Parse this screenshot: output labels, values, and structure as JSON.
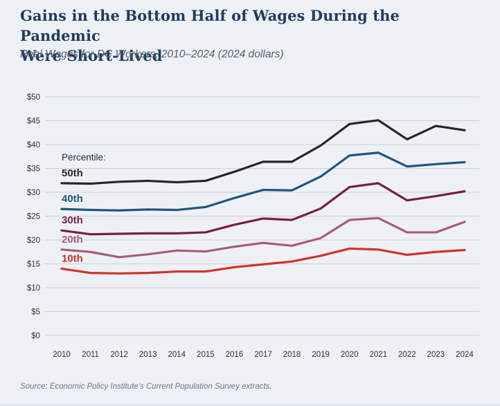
{
  "header": {
    "title_line1": "Gains in the Bottom Half of Wages During the Pandemic",
    "title_line2": "Were Short-Lived",
    "subtitle": "Real Wages for DC Workers, 2010–2024 (2024 dollars)"
  },
  "footer": {
    "source": "Source: Economic Policy Institute’s Current Population Survey extracts."
  },
  "colors": {
    "background": "#edf1f6",
    "title_text": "#1e3c5f",
    "subtitle_text": "#535e68",
    "axis_text": "#2d3238",
    "gridline": "#c9cfd7",
    "legend_title_text": "#22293a",
    "source_text": "#6e7881",
    "series_50th": "#25252b",
    "series_40th": "#1d567b",
    "series_30th": "#7b1d45",
    "series_20th": "#a85b76",
    "series_10th": "#d0312a"
  },
  "chart_data": {
    "type": "line",
    "title": "Gains in the Bottom Half of Wages During the Pandemic Were Short-Lived",
    "subtitle": "Real Wages for DC Workers, 2010–2024 (2024 dollars)",
    "legend_title": "Percentile:",
    "legend_position": "inside-left, label above each line's 2010 start",
    "grid": true,
    "xlabel": "",
    "ylabel": "",
    "ylim": [
      0,
      50
    ],
    "ytick_step": 5,
    "ytick_prefix": "$",
    "x": [
      2010,
      2011,
      2012,
      2013,
      2014,
      2015,
      2016,
      2017,
      2018,
      2019,
      2020,
      2021,
      2022,
      2023,
      2024
    ],
    "series": [
      {
        "name": "50th",
        "color": "#25252b",
        "values": [
          31.9,
          31.8,
          32.2,
          32.4,
          32.1,
          32.4,
          34.3,
          36.4,
          36.4,
          39.8,
          44.3,
          45.1,
          41.1,
          43.9,
          43.0
        ]
      },
      {
        "name": "40th",
        "color": "#1d567b",
        "values": [
          26.5,
          26.3,
          26.2,
          26.4,
          26.3,
          26.9,
          28.8,
          30.5,
          30.4,
          33.3,
          37.7,
          38.3,
          35.4,
          35.9,
          36.3
        ]
      },
      {
        "name": "30th",
        "color": "#7b1d45",
        "values": [
          22.0,
          21.2,
          21.3,
          21.4,
          21.4,
          21.6,
          23.2,
          24.5,
          24.2,
          26.6,
          31.1,
          31.9,
          28.3,
          29.2,
          30.2
        ]
      },
      {
        "name": "20th",
        "color": "#a85b76",
        "values": [
          18.0,
          17.5,
          16.4,
          17.0,
          17.8,
          17.6,
          18.6,
          19.4,
          18.8,
          20.4,
          24.2,
          24.6,
          21.6,
          21.6,
          23.8
        ]
      },
      {
        "name": "10th",
        "color": "#d0312a",
        "values": [
          14.0,
          13.1,
          13.0,
          13.1,
          13.4,
          13.4,
          14.3,
          14.9,
          15.5,
          16.7,
          18.2,
          18.0,
          16.9,
          17.5,
          17.9
        ]
      }
    ]
  }
}
